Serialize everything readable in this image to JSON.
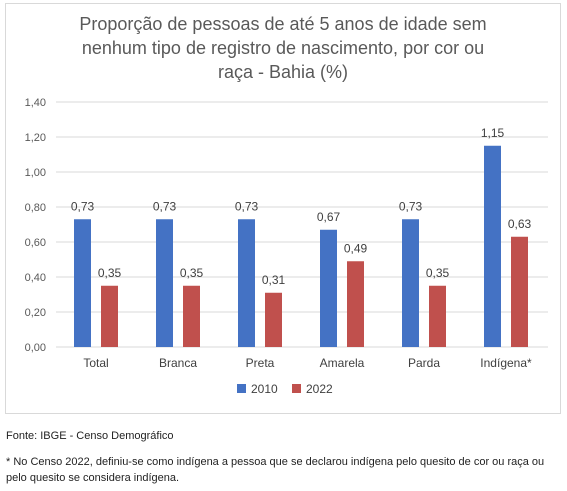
{
  "chart_data": {
    "type": "bar",
    "title": "Proporção de pessoas de até 5 anos de idade sem nenhum tipo de registro de nascimento, por cor ou raça - Bahia (%)",
    "categories": [
      "Total",
      "Branca",
      "Preta",
      "Amarela",
      "Parda",
      "Indígena*"
    ],
    "series": [
      {
        "name": "2010",
        "color": "#4472c4",
        "values": [
          0.73,
          0.73,
          0.73,
          0.67,
          0.73,
          1.15
        ],
        "labels": [
          "0,73",
          "0,73",
          "0,73",
          "0,67",
          "0,73",
          "1,15"
        ]
      },
      {
        "name": "2022",
        "color": "#c0504d",
        "values": [
          0.35,
          0.35,
          0.31,
          0.49,
          0.35,
          0.63
        ],
        "labels": [
          "0,35",
          "0,35",
          "0,31",
          "0,49",
          "0,35",
          "0,63"
        ]
      }
    ],
    "ylim": [
      0,
      1.4
    ],
    "yticks": [
      0,
      0.2,
      0.4,
      0.6,
      0.8,
      1.0,
      1.2,
      1.4
    ],
    "ytick_labels": [
      "0,00",
      "0,20",
      "0,40",
      "0,60",
      "0,80",
      "1,00",
      "1,20",
      "1,40"
    ],
    "grid": true,
    "legend_position": "bottom"
  },
  "footnotes": {
    "source": "Fonte: IBGE - Censo Demográfico",
    "note": "* No Censo 2022, definiu-se como indígena a pessoa que se declarou indígena pelo quesito de cor ou raça ou pelo quesito se considera indígena."
  }
}
